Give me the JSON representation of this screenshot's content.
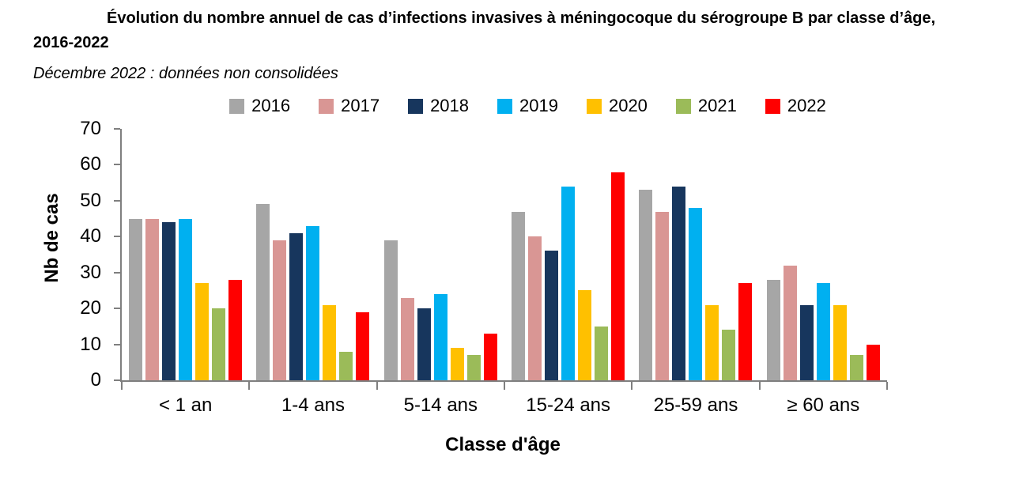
{
  "page": {
    "title": "Évolution du nombre annuel de cas d’infections invasives à méningocoque du sérogroupe B par classe d’âge, 2016-2022",
    "subtitle": "Décembre 2022 : données non consolidées"
  },
  "chart_data": {
    "type": "bar",
    "title": "Évolution du nombre annuel de cas d’infections invasives à méningocoque du sérogroupe B par classe d’âge, 2016-2022",
    "subtitle": "Décembre 2022 : données non consolidées",
    "xlabel": "Classe d'âge",
    "ylabel": "Nb de cas",
    "ylim": [
      0,
      70
    ],
    "ytick_step": 10,
    "grid": false,
    "legend_position": "top",
    "axis_color": "#7f7f7f",
    "categories": [
      "< 1 an",
      "1-4 ans",
      "5-14 ans",
      "15-24 ans",
      "25-59 ans",
      "≥ 60 ans"
    ],
    "series": [
      {
        "name": "2016",
        "color": "#a6a6a6",
        "values": [
          45,
          49,
          39,
          47,
          53,
          28
        ]
      },
      {
        "name": "2017",
        "color": "#d99694",
        "values": [
          45,
          39,
          23,
          40,
          47,
          32
        ]
      },
      {
        "name": "2018",
        "color": "#17365d",
        "values": [
          44,
          41,
          20,
          36,
          54,
          21
        ]
      },
      {
        "name": "2019",
        "color": "#00b0f0",
        "values": [
          45,
          43,
          24,
          54,
          48,
          27
        ]
      },
      {
        "name": "2020",
        "color": "#ffc000",
        "values": [
          27,
          21,
          9,
          25,
          21,
          21
        ]
      },
      {
        "name": "2021",
        "color": "#9bbb59",
        "values": [
          20,
          8,
          7,
          15,
          14,
          7
        ]
      },
      {
        "name": "2022",
        "color": "#ff0000",
        "values": [
          28,
          19,
          13,
          58,
          27,
          10
        ]
      }
    ]
  }
}
